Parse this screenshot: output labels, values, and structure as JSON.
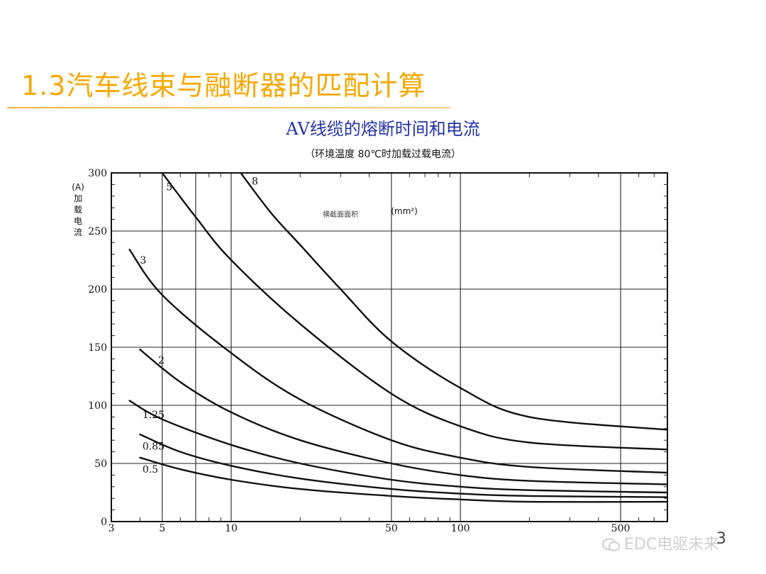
{
  "slide": {
    "title": "1.3汽车线束与融断器的匹配计算",
    "number": "3",
    "watermark": "EDC电驱未来"
  },
  "chart_data": {
    "type": "line",
    "title": "AV线缆的熔断时间和电流",
    "subtitle": "（环境温度 80℃时加载过载电流）",
    "ylabel": [
      "(A)",
      "加",
      "载",
      "电",
      "流"
    ],
    "xlabel": "",
    "legend_title": "横截面面积",
    "legend_unit": "(mm²)",
    "x_scale": "log",
    "xlim": [
      3,
      800
    ],
    "ylim": [
      0,
      300
    ],
    "grid": true,
    "x_ticks": [
      {
        "value": 3,
        "label": "3"
      },
      {
        "value": 5,
        "label": "5"
      },
      {
        "value": 10,
        "label": "10"
      },
      {
        "value": 50,
        "label": "50"
      },
      {
        "value": 100,
        "label": "100"
      },
      {
        "value": 500,
        "label": "500"
      }
    ],
    "x_gridlines": [
      5,
      7,
      10,
      50,
      100,
      500
    ],
    "x_minor_ticks": [
      4,
      6,
      8,
      9,
      20,
      30,
      40,
      60,
      70,
      80,
      90,
      200,
      300,
      400,
      600,
      700
    ],
    "y_ticks": [
      0,
      50,
      100,
      150,
      200,
      250,
      300
    ],
    "y_gridlines": [
      50,
      100,
      150,
      200,
      250
    ],
    "y_minor_step": 10,
    "series": [
      {
        "name": "0.5",
        "x": [
          4,
          6,
          10,
          20,
          50,
          100,
          200,
          800
        ],
        "y": [
          55,
          45,
          36,
          28,
          22,
          19,
          17,
          17
        ]
      },
      {
        "name": "0.85",
        "x": [
          4,
          6,
          10,
          20,
          50,
          100,
          200,
          800
        ],
        "y": [
          75,
          60,
          48,
          37,
          28,
          24,
          22,
          21
        ]
      },
      {
        "name": "1.25",
        "x": [
          3.6,
          5,
          10,
          20,
          50,
          100,
          200,
          800
        ],
        "y": [
          104,
          88,
          66,
          50,
          36,
          30,
          27,
          25
        ]
      },
      {
        "name": "2",
        "x": [
          4,
          6,
          10,
          20,
          50,
          100,
          200,
          800
        ],
        "y": [
          148,
          120,
          94,
          70,
          50,
          40,
          35,
          32
        ]
      },
      {
        "name": "3",
        "x": [
          3.6,
          5,
          10,
          20,
          50,
          100,
          200,
          800
        ],
        "y": [
          234,
          195,
          145,
          105,
          70,
          55,
          47,
          42
        ]
      },
      {
        "name": "5",
        "x": [
          5,
          7,
          10,
          20,
          50,
          100,
          200,
          800
        ],
        "y": [
          300,
          262,
          225,
          170,
          110,
          82,
          68,
          62
        ]
      },
      {
        "name": "8",
        "x": [
          11,
          15,
          20,
          30,
          50,
          100,
          200,
          800
        ],
        "y": [
          300,
          265,
          238,
          200,
          155,
          115,
          90,
          79
        ]
      }
    ],
    "series_labels": [
      {
        "series": "0.5",
        "x": 4.1,
        "y": 42
      },
      {
        "series": "0.85",
        "x": 4.1,
        "y": 62
      },
      {
        "series": "1.25",
        "x": 4.1,
        "y": 89
      },
      {
        "series": "2",
        "x": 4.8,
        "y": 136
      },
      {
        "series": "3",
        "x": 4.0,
        "y": 222
      },
      {
        "series": "5",
        "x": 5.2,
        "y": 285
      },
      {
        "series": "8",
        "x": 12.3,
        "y": 290
      }
    ]
  }
}
